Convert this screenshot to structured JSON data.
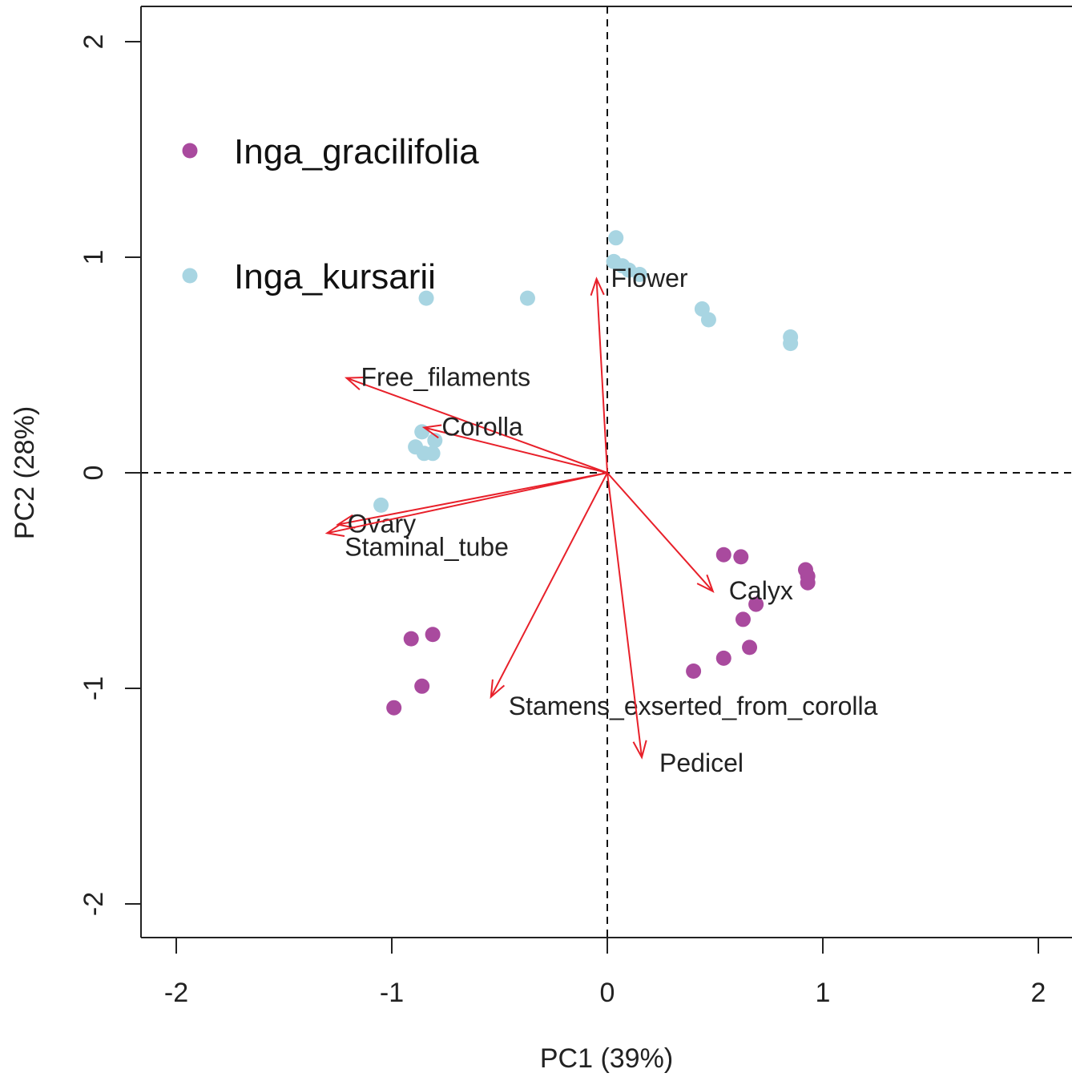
{
  "chart_data": {
    "type": "scatter",
    "title": "",
    "xlabel": "PC1 (39%)",
    "ylabel": "PC2 (28%)",
    "xlim": [
      -2.15,
      2.15
    ],
    "ylim": [
      -2.15,
      2.15
    ],
    "x_ticks": [
      {
        "value": -2,
        "label": "-2"
      },
      {
        "value": -1,
        "label": "-1"
      },
      {
        "value": 0,
        "label": "0"
      },
      {
        "value": 1,
        "label": "1"
      },
      {
        "value": 2,
        "label": "2"
      }
    ],
    "y_ticks": [
      {
        "value": -2,
        "label": "-2"
      },
      {
        "value": -1,
        "label": "-1"
      },
      {
        "value": 0,
        "label": "0"
      },
      {
        "value": 1,
        "label": "1"
      },
      {
        "value": 2,
        "label": "2"
      }
    ],
    "reference_lines": {
      "x": 0,
      "y": 0,
      "style": "dashed"
    },
    "legend": {
      "position": "top-left"
    },
    "series": [
      {
        "name": "Inga_gracilifolia",
        "color": "#a94a9e",
        "points": [
          {
            "x": 0.54,
            "y": -0.38
          },
          {
            "x": 0.62,
            "y": -0.39
          },
          {
            "x": 0.92,
            "y": -0.45
          },
          {
            "x": 0.93,
            "y": -0.48
          },
          {
            "x": 0.93,
            "y": -0.51
          },
          {
            "x": 0.69,
            "y": -0.61
          },
          {
            "x": 0.63,
            "y": -0.68
          },
          {
            "x": 0.66,
            "y": -0.81
          },
          {
            "x": 0.54,
            "y": -0.86
          },
          {
            "x": 0.4,
            "y": -0.92
          },
          {
            "x": -0.91,
            "y": -0.77
          },
          {
            "x": -0.81,
            "y": -0.75
          },
          {
            "x": -0.86,
            "y": -0.99
          },
          {
            "x": -0.99,
            "y": -1.09
          }
        ]
      },
      {
        "name": "Inga_kursarii",
        "color": "#a8d5e2",
        "points": [
          {
            "x": 0.04,
            "y": 1.09
          },
          {
            "x": 0.03,
            "y": 0.98
          },
          {
            "x": 0.07,
            "y": 0.96
          },
          {
            "x": 0.1,
            "y": 0.94
          },
          {
            "x": 0.15,
            "y": 0.92
          },
          {
            "x": -0.84,
            "y": 0.81
          },
          {
            "x": -0.37,
            "y": 0.81
          },
          {
            "x": 0.44,
            "y": 0.76
          },
          {
            "x": 0.47,
            "y": 0.71
          },
          {
            "x": 0.85,
            "y": 0.63
          },
          {
            "x": 0.85,
            "y": 0.6
          },
          {
            "x": -0.86,
            "y": 0.19
          },
          {
            "x": -0.8,
            "y": 0.15
          },
          {
            "x": -0.89,
            "y": 0.12
          },
          {
            "x": -0.81,
            "y": 0.09
          },
          {
            "x": -0.85,
            "y": 0.09
          },
          {
            "x": -1.05,
            "y": -0.15
          }
        ]
      }
    ],
    "loadings": {
      "color": "#e8202a",
      "arrows": [
        {
          "label": "Flower",
          "x": -0.05,
          "y": 0.9
        },
        {
          "label": "Free_filaments",
          "x": -1.21,
          "y": 0.44
        },
        {
          "label": "Corolla",
          "x": -0.85,
          "y": 0.21
        },
        {
          "label": "Ovary",
          "x": -1.25,
          "y": -0.24
        },
        {
          "label": "Staminal_tube",
          "x": -1.3,
          "y": -0.28
        },
        {
          "label": "Calyx",
          "x": 0.49,
          "y": -0.55
        },
        {
          "label": "Stamens_exserted_from_corolla",
          "x": -0.54,
          "y": -1.04
        },
        {
          "label": "Pedicel",
          "x": 0.16,
          "y": -1.32
        }
      ]
    }
  }
}
